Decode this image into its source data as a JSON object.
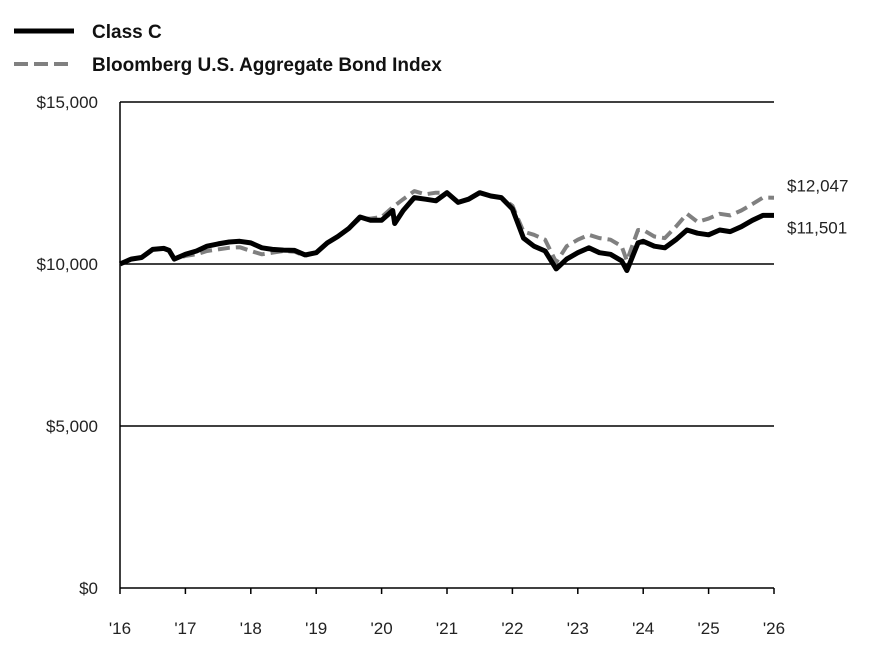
{
  "chart_data": {
    "type": "line",
    "title": "",
    "xlabel": "",
    "ylabel": "",
    "x_start": 2016,
    "x_end": 2026,
    "ylim": [
      0,
      15000
    ],
    "y_ticks": [
      {
        "value": 0,
        "label": "$0"
      },
      {
        "value": 5000,
        "label": "$5,000"
      },
      {
        "value": 10000,
        "label": "$10,000"
      },
      {
        "value": 15000,
        "label": "$15,000"
      }
    ],
    "x_ticks": [
      {
        "value": 2016,
        "label": "'16"
      },
      {
        "value": 2017,
        "label": "'17"
      },
      {
        "value": 2018,
        "label": "'18"
      },
      {
        "value": 2019,
        "label": "'19"
      },
      {
        "value": 2020,
        "label": "'20"
      },
      {
        "value": 2021,
        "label": "'21"
      },
      {
        "value": 2022,
        "label": "'22"
      },
      {
        "value": 2023,
        "label": "'23"
      },
      {
        "value": 2024,
        "label": "'24"
      },
      {
        "value": 2025,
        "label": "'25"
      },
      {
        "value": 2026,
        "label": "'26"
      }
    ],
    "legend_position": "top-left",
    "grid": "horizontal",
    "series": [
      {
        "name": "Class C",
        "color": "#000000",
        "style": "solid",
        "end_label": "$11,501",
        "points": [
          [
            2016.0,
            10000
          ],
          [
            2016.17,
            10150
          ],
          [
            2016.33,
            10200
          ],
          [
            2016.5,
            10450
          ],
          [
            2016.67,
            10480
          ],
          [
            2016.75,
            10420
          ],
          [
            2016.83,
            10150
          ],
          [
            2017.0,
            10300
          ],
          [
            2017.17,
            10400
          ],
          [
            2017.33,
            10550
          ],
          [
            2017.5,
            10620
          ],
          [
            2017.67,
            10680
          ],
          [
            2017.83,
            10700
          ],
          [
            2018.0,
            10650
          ],
          [
            2018.17,
            10500
          ],
          [
            2018.33,
            10450
          ],
          [
            2018.5,
            10430
          ],
          [
            2018.67,
            10420
          ],
          [
            2018.83,
            10280
          ],
          [
            2019.0,
            10350
          ],
          [
            2019.17,
            10650
          ],
          [
            2019.33,
            10850
          ],
          [
            2019.5,
            11100
          ],
          [
            2019.67,
            11450
          ],
          [
            2019.83,
            11350
          ],
          [
            2020.0,
            11350
          ],
          [
            2020.17,
            11650
          ],
          [
            2020.2,
            11250
          ],
          [
            2020.33,
            11650
          ],
          [
            2020.5,
            12050
          ],
          [
            2020.67,
            12000
          ],
          [
            2020.83,
            11950
          ],
          [
            2021.0,
            12200
          ],
          [
            2021.17,
            11900
          ],
          [
            2021.33,
            12000
          ],
          [
            2021.5,
            12200
          ],
          [
            2021.67,
            12100
          ],
          [
            2021.83,
            12050
          ],
          [
            2022.0,
            11700
          ],
          [
            2022.17,
            10800
          ],
          [
            2022.33,
            10550
          ],
          [
            2022.5,
            10400
          ],
          [
            2022.67,
            9850
          ],
          [
            2022.83,
            10150
          ],
          [
            2023.0,
            10350
          ],
          [
            2023.17,
            10500
          ],
          [
            2023.33,
            10350
          ],
          [
            2023.5,
            10300
          ],
          [
            2023.67,
            10100
          ],
          [
            2023.75,
            9800
          ],
          [
            2023.92,
            10650
          ],
          [
            2024.0,
            10700
          ],
          [
            2024.17,
            10550
          ],
          [
            2024.33,
            10500
          ],
          [
            2024.5,
            10750
          ],
          [
            2024.67,
            11050
          ],
          [
            2024.83,
            10950
          ],
          [
            2025.0,
            10900
          ],
          [
            2025.17,
            11050
          ],
          [
            2025.33,
            11000
          ],
          [
            2025.5,
            11150
          ],
          [
            2025.67,
            11350
          ],
          [
            2025.83,
            11500
          ],
          [
            2026.0,
            11501
          ]
        ]
      },
      {
        "name": "Bloomberg U.S. Aggregate Bond Index",
        "color": "#808080",
        "style": "dashed",
        "end_label": "$12,047",
        "points": [
          [
            2016.0,
            10000
          ],
          [
            2016.17,
            10150
          ],
          [
            2016.33,
            10200
          ],
          [
            2016.5,
            10450
          ],
          [
            2016.67,
            10480
          ],
          [
            2016.75,
            10400
          ],
          [
            2016.83,
            10150
          ],
          [
            2017.0,
            10250
          ],
          [
            2017.17,
            10300
          ],
          [
            2017.33,
            10400
          ],
          [
            2017.5,
            10450
          ],
          [
            2017.67,
            10500
          ],
          [
            2017.83,
            10520
          ],
          [
            2018.0,
            10400
          ],
          [
            2018.17,
            10300
          ],
          [
            2018.33,
            10350
          ],
          [
            2018.5,
            10400
          ],
          [
            2018.67,
            10380
          ],
          [
            2018.83,
            10250
          ],
          [
            2019.0,
            10350
          ],
          [
            2019.17,
            10650
          ],
          [
            2019.33,
            10850
          ],
          [
            2019.5,
            11100
          ],
          [
            2019.67,
            11400
          ],
          [
            2019.83,
            11400
          ],
          [
            2020.0,
            11450
          ],
          [
            2020.17,
            11750
          ],
          [
            2020.33,
            12000
          ],
          [
            2020.5,
            12250
          ],
          [
            2020.67,
            12150
          ],
          [
            2020.83,
            12200
          ],
          [
            2021.0,
            12200
          ],
          [
            2021.17,
            11900
          ],
          [
            2021.33,
            12000
          ],
          [
            2021.5,
            12200
          ],
          [
            2021.67,
            12100
          ],
          [
            2021.83,
            12050
          ],
          [
            2022.0,
            11800
          ],
          [
            2022.17,
            11000
          ],
          [
            2022.33,
            10900
          ],
          [
            2022.5,
            10750
          ],
          [
            2022.67,
            10050
          ],
          [
            2022.83,
            10550
          ],
          [
            2023.0,
            10750
          ],
          [
            2023.17,
            10900
          ],
          [
            2023.33,
            10800
          ],
          [
            2023.5,
            10750
          ],
          [
            2023.67,
            10550
          ],
          [
            2023.75,
            10100
          ],
          [
            2023.92,
            11050
          ],
          [
            2024.0,
            11050
          ],
          [
            2024.17,
            10850
          ],
          [
            2024.33,
            10800
          ],
          [
            2024.5,
            11150
          ],
          [
            2024.67,
            11550
          ],
          [
            2024.83,
            11300
          ],
          [
            2025.0,
            11400
          ],
          [
            2025.17,
            11550
          ],
          [
            2025.33,
            11500
          ],
          [
            2025.5,
            11650
          ],
          [
            2025.67,
            11850
          ],
          [
            2025.83,
            12050
          ],
          [
            2026.0,
            12047
          ]
        ]
      }
    ]
  }
}
